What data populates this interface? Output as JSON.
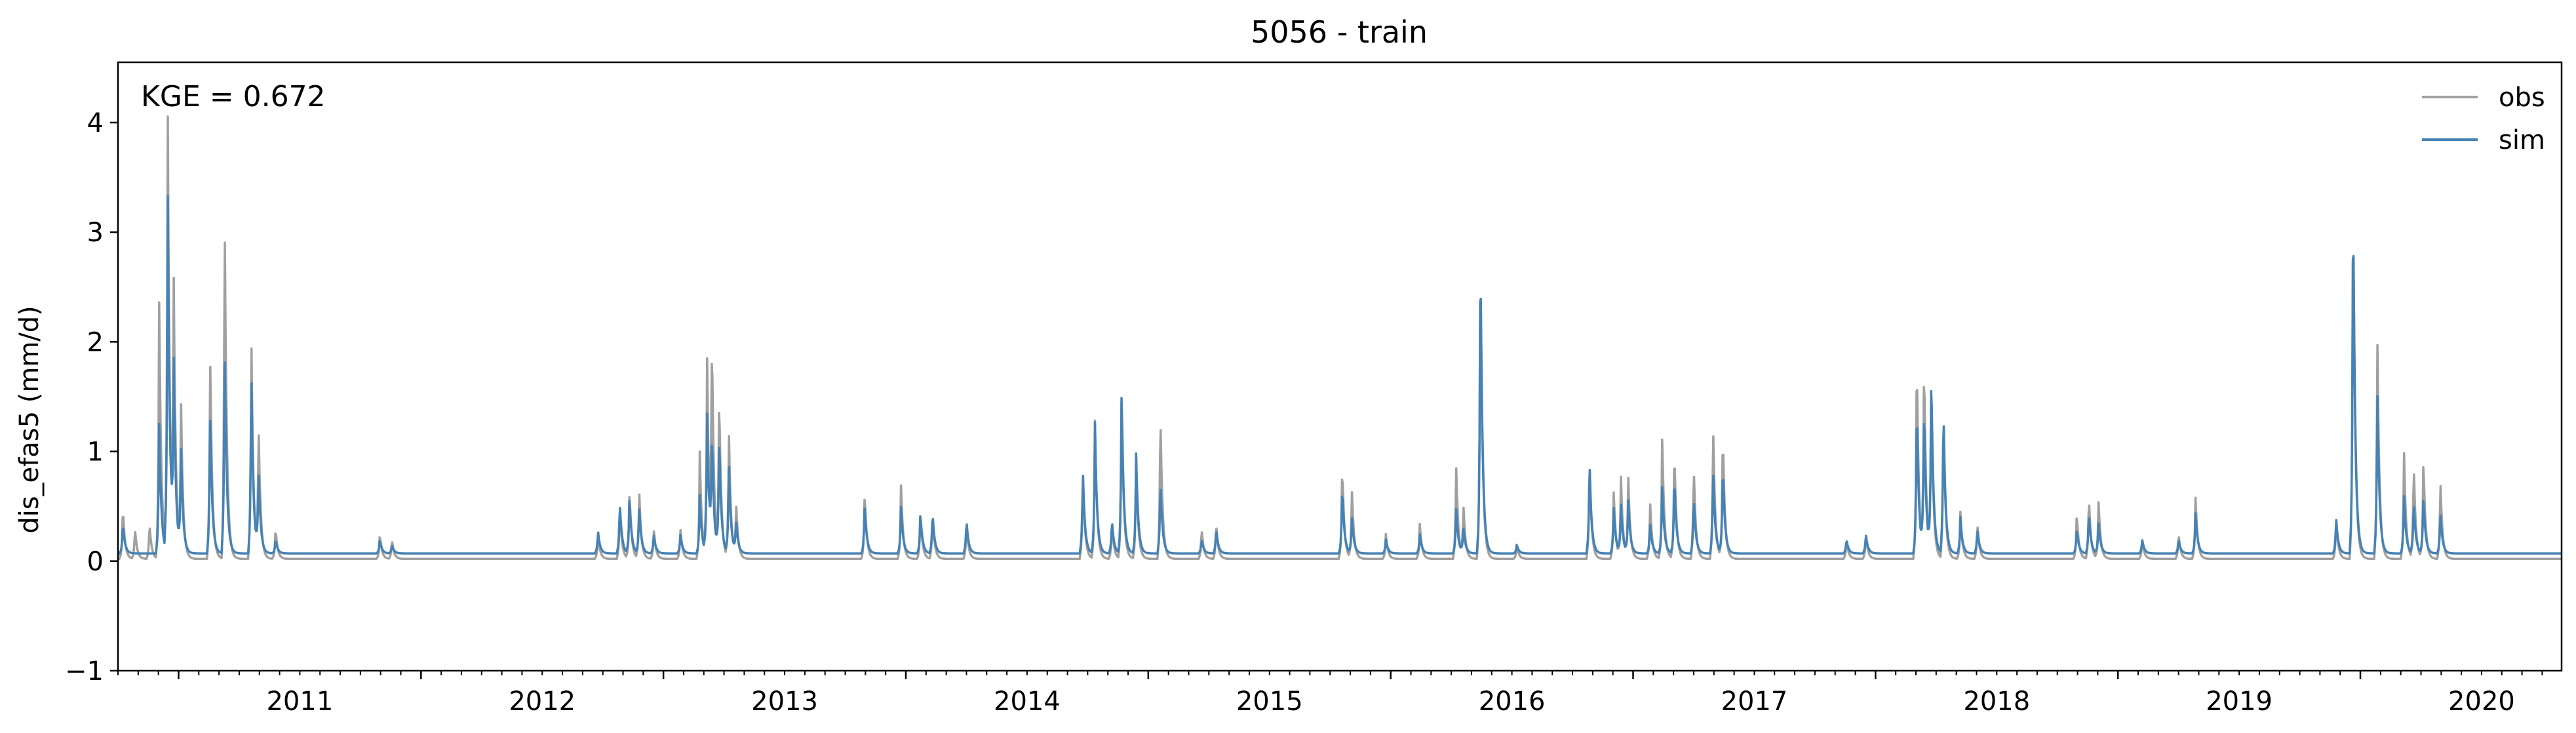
{
  "chart_data": {
    "type": "line",
    "title": "5056 - train",
    "xlabel": "",
    "ylabel": "dis_efas5 (mm/d)",
    "annotation": "KGE = 0.672",
    "xlim": [
      2010.75,
      2020.83
    ],
    "ylim": [
      -1,
      4.55
    ],
    "yticks": [
      -1,
      0,
      1,
      2,
      3,
      4
    ],
    "ytick_labels": [
      "−1",
      "0",
      "1",
      "2",
      "3",
      "4"
    ],
    "xticks": [
      2011,
      2012,
      2013,
      2014,
      2015,
      2016,
      2017,
      2018,
      2019,
      2020
    ],
    "xtick_labels": [
      "2011",
      "2012",
      "2013",
      "2014",
      "2015",
      "2016",
      "2017",
      "2018",
      "2019",
      "2020"
    ],
    "grid": false,
    "legend_position": "top-right",
    "colors": {
      "obs": "#a0a0a0",
      "sim": "#4682b4"
    },
    "series": [
      {
        "name": "obs",
        "baseline": 0.02,
        "peaks": [
          [
            2010.77,
            0.5
          ],
          [
            2010.82,
            0.3
          ],
          [
            2010.88,
            0.35
          ],
          [
            2010.92,
            2.45
          ],
          [
            2010.955,
            4.25
          ],
          [
            2010.98,
            2.4
          ],
          [
            2011.01,
            1.4
          ],
          [
            2011.13,
            1.95
          ],
          [
            2011.19,
            3.3
          ],
          [
            2011.3,
            2.1
          ],
          [
            2011.33,
            1.2
          ],
          [
            2011.4,
            0.3
          ],
          [
            2011.83,
            0.25
          ],
          [
            2011.88,
            0.2
          ],
          [
            2012.73,
            0.25
          ],
          [
            2012.82,
            0.5
          ],
          [
            2012.86,
            0.65
          ],
          [
            2012.9,
            0.65
          ],
          [
            2012.96,
            0.3
          ],
          [
            2013.07,
            0.3
          ],
          [
            2013.15,
            1.0
          ],
          [
            2013.18,
            1.85
          ],
          [
            2013.2,
            1.95
          ],
          [
            2013.23,
            1.5
          ],
          [
            2013.27,
            1.2
          ],
          [
            2013.3,
            0.5
          ],
          [
            2013.83,
            0.65
          ],
          [
            2013.98,
            0.7
          ],
          [
            2014.06,
            0.45
          ],
          [
            2014.11,
            0.45
          ],
          [
            2014.25,
            0.35
          ],
          [
            2014.73,
            0.85
          ],
          [
            2014.78,
            1.3
          ],
          [
            2014.85,
            0.35
          ],
          [
            2014.89,
            1.55
          ],
          [
            2014.95,
            0.95
          ],
          [
            2015.05,
            1.4
          ],
          [
            2015.22,
            0.3
          ],
          [
            2015.28,
            0.35
          ],
          [
            2015.8,
            0.9
          ],
          [
            2015.84,
            0.65
          ],
          [
            2015.98,
            0.25
          ],
          [
            2016.12,
            0.35
          ],
          [
            2016.27,
            0.9
          ],
          [
            2016.3,
            0.5
          ],
          [
            2016.37,
            2.95
          ],
          [
            2016.52,
            0.15
          ],
          [
            2016.82,
            0.95
          ],
          [
            2016.92,
            0.65
          ],
          [
            2016.95,
            0.75
          ],
          [
            2016.98,
            0.75
          ],
          [
            2017.07,
            0.55
          ],
          [
            2017.12,
            1.15
          ],
          [
            2017.17,
            1.05
          ],
          [
            2017.25,
            0.9
          ],
          [
            2017.33,
            1.25
          ],
          [
            2017.37,
            1.2
          ],
          [
            2017.88,
            0.2
          ],
          [
            2017.96,
            0.25
          ],
          [
            2018.17,
            1.95
          ],
          [
            2018.2,
            1.85
          ],
          [
            2018.23,
            1.6
          ],
          [
            2018.28,
            1.4
          ],
          [
            2018.35,
            0.45
          ],
          [
            2018.42,
            0.35
          ],
          [
            2018.83,
            0.45
          ],
          [
            2018.88,
            0.6
          ],
          [
            2018.92,
            0.55
          ],
          [
            2019.1,
            0.2
          ],
          [
            2019.25,
            0.25
          ],
          [
            2019.32,
            0.6
          ],
          [
            2019.9,
            0.4
          ],
          [
            2019.97,
            3.45
          ],
          [
            2020.07,
            2.1
          ],
          [
            2020.18,
            1.0
          ],
          [
            2020.22,
            0.9
          ],
          [
            2020.26,
            0.95
          ],
          [
            2020.33,
            0.75
          ]
        ]
      },
      {
        "name": "sim",
        "baseline": 0.07,
        "peaks": [
          [
            2010.77,
            0.35
          ],
          [
            2010.92,
            1.3
          ],
          [
            2010.955,
            3.5
          ],
          [
            2010.98,
            1.7
          ],
          [
            2011.01,
            1.0
          ],
          [
            2011.13,
            1.4
          ],
          [
            2011.19,
            2.05
          ],
          [
            2011.3,
            1.75
          ],
          [
            2011.33,
            0.8
          ],
          [
            2011.4,
            0.2
          ],
          [
            2011.83,
            0.2
          ],
          [
            2011.88,
            0.15
          ],
          [
            2012.73,
            0.28
          ],
          [
            2012.82,
            0.55
          ],
          [
            2012.86,
            0.6
          ],
          [
            2012.9,
            0.5
          ],
          [
            2012.96,
            0.25
          ],
          [
            2013.07,
            0.25
          ],
          [
            2013.15,
            0.6
          ],
          [
            2013.18,
            1.35
          ],
          [
            2013.2,
            1.1
          ],
          [
            2013.23,
            1.15
          ],
          [
            2013.27,
            0.9
          ],
          [
            2013.3,
            0.35
          ],
          [
            2013.83,
            0.55
          ],
          [
            2013.98,
            0.5
          ],
          [
            2014.06,
            0.45
          ],
          [
            2014.11,
            0.45
          ],
          [
            2014.25,
            0.38
          ],
          [
            2014.73,
            0.85
          ],
          [
            2014.78,
            1.28
          ],
          [
            2014.85,
            0.38
          ],
          [
            2014.89,
            1.6
          ],
          [
            2014.95,
            0.98
          ],
          [
            2015.05,
            0.75
          ],
          [
            2015.22,
            0.2
          ],
          [
            2015.28,
            0.3
          ],
          [
            2015.8,
            0.7
          ],
          [
            2015.84,
            0.4
          ],
          [
            2015.98,
            0.2
          ],
          [
            2016.12,
            0.25
          ],
          [
            2016.27,
            0.5
          ],
          [
            2016.3,
            0.3
          ],
          [
            2016.37,
            2.98
          ],
          [
            2016.52,
            0.15
          ],
          [
            2016.82,
            0.95
          ],
          [
            2016.92,
            0.5
          ],
          [
            2016.95,
            0.5
          ],
          [
            2016.98,
            0.55
          ],
          [
            2017.07,
            0.35
          ],
          [
            2017.12,
            0.7
          ],
          [
            2017.17,
            0.8
          ],
          [
            2017.25,
            0.6
          ],
          [
            2017.33,
            0.85
          ],
          [
            2017.37,
            0.9
          ],
          [
            2017.88,
            0.2
          ],
          [
            2017.96,
            0.25
          ],
          [
            2018.17,
            1.5
          ],
          [
            2018.2,
            1.45
          ],
          [
            2018.23,
            1.75
          ],
          [
            2018.28,
            1.45
          ],
          [
            2018.35,
            0.4
          ],
          [
            2018.42,
            0.3
          ],
          [
            2018.83,
            0.3
          ],
          [
            2018.88,
            0.45
          ],
          [
            2018.92,
            0.35
          ],
          [
            2019.1,
            0.2
          ],
          [
            2019.25,
            0.2
          ],
          [
            2019.32,
            0.45
          ],
          [
            2019.9,
            0.4
          ],
          [
            2019.97,
            3.47
          ],
          [
            2020.07,
            1.6
          ],
          [
            2020.18,
            0.6
          ],
          [
            2020.22,
            0.55
          ],
          [
            2020.26,
            0.6
          ],
          [
            2020.33,
            0.45
          ]
        ]
      }
    ]
  }
}
